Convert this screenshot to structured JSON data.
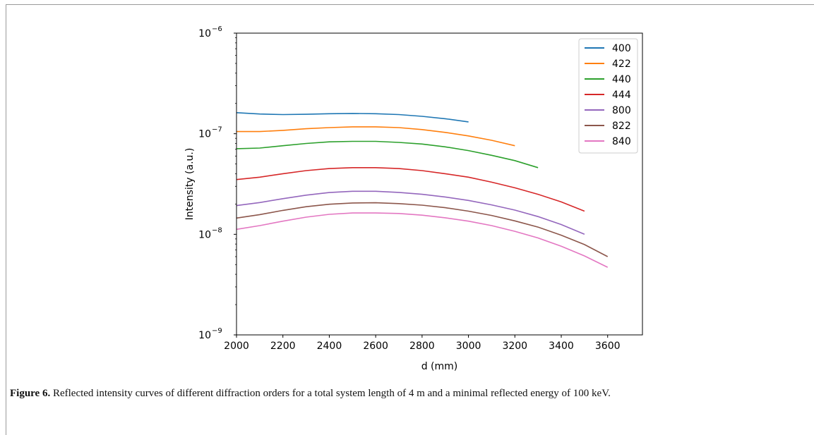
{
  "caption": {
    "label": "Figure 6.",
    "text": " Reflected intensity curves of different diffraction orders for a total system length of 4 m and a minimal reflected energy of 100 keV."
  },
  "chart_data": {
    "type": "line",
    "title": "",
    "xlabel": "d (mm)",
    "ylabel": "Intensity (a.u.)",
    "xlim": [
      2000,
      3750
    ],
    "ylim": [
      1e-09,
      1e-06
    ],
    "yscale": "log",
    "grid": false,
    "legend_position": "top-right",
    "x_ticks": [
      "2000",
      "2200",
      "2400",
      "2600",
      "2800",
      "3000",
      "3200",
      "3400",
      "3600"
    ],
    "y_ticks": [
      {
        "base": "10",
        "exp": "−9"
      },
      {
        "base": "10",
        "exp": "−8"
      },
      {
        "base": "10",
        "exp": "−7"
      },
      {
        "base": "10",
        "exp": "−6"
      }
    ],
    "series": [
      {
        "name": "400",
        "color": "#1f77b4",
        "x": [
          2000,
          2100,
          2200,
          2300,
          2400,
          2500,
          2600,
          2700,
          2800,
          2900,
          3000
        ],
        "y": [
          1.62e-07,
          1.57e-07,
          1.55e-07,
          1.56e-07,
          1.58e-07,
          1.59e-07,
          1.58e-07,
          1.55e-07,
          1.49e-07,
          1.41e-07,
          1.31e-07
        ]
      },
      {
        "name": "422",
        "color": "#ff7f0e",
        "x": [
          2000,
          2100,
          2200,
          2300,
          2400,
          2500,
          2600,
          2700,
          2800,
          2900,
          3000,
          3100,
          3200
        ],
        "y": [
          1.05e-07,
          1.05e-07,
          1.08e-07,
          1.12e-07,
          1.15e-07,
          1.17e-07,
          1.17e-07,
          1.15e-07,
          1.1e-07,
          1.03e-07,
          9.5e-08,
          8.6e-08,
          7.6e-08
        ]
      },
      {
        "name": "440",
        "color": "#2ca02c",
        "x": [
          2000,
          2100,
          2200,
          2300,
          2400,
          2500,
          2600,
          2700,
          2800,
          2900,
          3000,
          3100,
          3200,
          3300
        ],
        "y": [
          7.1e-08,
          7.2e-08,
          7.6e-08,
          8e-08,
          8.3e-08,
          8.4e-08,
          8.4e-08,
          8.2e-08,
          7.9e-08,
          7.4e-08,
          6.8e-08,
          6.1e-08,
          5.4e-08,
          4.6e-08
        ]
      },
      {
        "name": "444",
        "color": "#d62728",
        "x": [
          2000,
          2100,
          2200,
          2300,
          2400,
          2500,
          2600,
          2700,
          2800,
          2900,
          3000,
          3100,
          3200,
          3300,
          3400,
          3500
        ],
        "y": [
          3.5e-08,
          3.7e-08,
          4e-08,
          4.3e-08,
          4.5e-08,
          4.6e-08,
          4.6e-08,
          4.5e-08,
          4.3e-08,
          4e-08,
          3.7e-08,
          3.3e-08,
          2.9e-08,
          2.5e-08,
          2.1e-08,
          1.7e-08
        ]
      },
      {
        "name": "800",
        "color": "#9467bd",
        "x": [
          2000,
          2100,
          2200,
          2300,
          2400,
          2500,
          2600,
          2700,
          2800,
          2900,
          3000,
          3100,
          3200,
          3300,
          3400,
          3500
        ],
        "y": [
          1.93e-08,
          2.07e-08,
          2.26e-08,
          2.45e-08,
          2.6e-08,
          2.68e-08,
          2.68e-08,
          2.61e-08,
          2.5e-08,
          2.35e-08,
          2.17e-08,
          1.96e-08,
          1.74e-08,
          1.5e-08,
          1.25e-08,
          1e-08
        ]
      },
      {
        "name": "822",
        "color": "#8c564b",
        "x": [
          2000,
          2100,
          2200,
          2300,
          2400,
          2500,
          2600,
          2700,
          2800,
          2900,
          3000,
          3100,
          3200,
          3300,
          3400,
          3500,
          3600
        ],
        "y": [
          1.45e-08,
          1.57e-08,
          1.73e-08,
          1.88e-08,
          1.99e-08,
          2.05e-08,
          2.06e-08,
          2.02e-08,
          1.95e-08,
          1.84e-08,
          1.7e-08,
          1.54e-08,
          1.36e-08,
          1.18e-08,
          9.8e-09,
          7.9e-09,
          6e-09
        ]
      },
      {
        "name": "840",
        "color": "#e377c2",
        "x": [
          2000,
          2100,
          2200,
          2300,
          2400,
          2500,
          2600,
          2700,
          2800,
          2900,
          3000,
          3100,
          3200,
          3300,
          3400,
          3500,
          3600
        ],
        "y": [
          1.12e-08,
          1.22e-08,
          1.35e-08,
          1.48e-08,
          1.58e-08,
          1.63e-08,
          1.63e-08,
          1.61e-08,
          1.55e-08,
          1.46e-08,
          1.35e-08,
          1.22e-08,
          1.07e-08,
          9.2e-09,
          7.6e-09,
          6.1e-09,
          4.7e-09
        ]
      }
    ]
  }
}
